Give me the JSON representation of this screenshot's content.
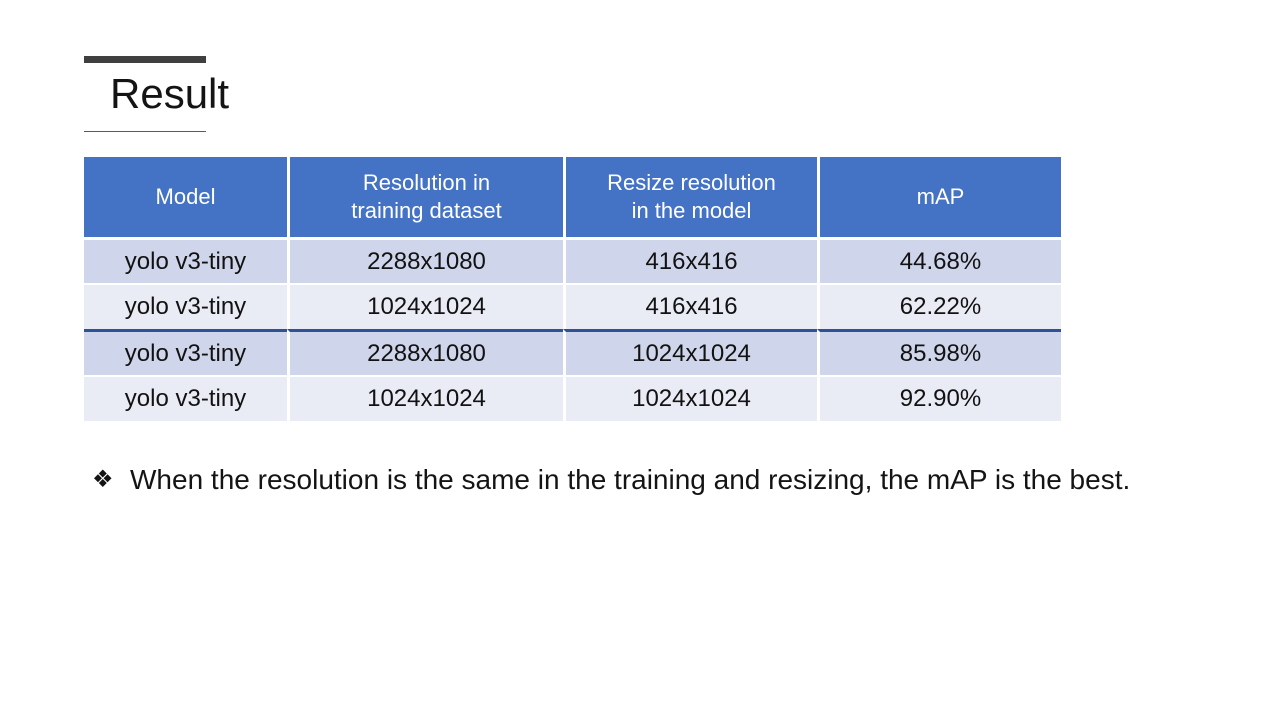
{
  "slide": {
    "title": "Result",
    "bullet": {
      "glyph": "❖",
      "glyph_name": "four-diamond-bullet",
      "text": "When the resolution is the same in the training and resizing, the mAP is the best."
    }
  },
  "table": {
    "headers": {
      "model": "Model",
      "train_res": "Resolution in\ntraining dataset",
      "resize_res": "Resize resolution\nin the model",
      "map": "mAP"
    },
    "rows": [
      {
        "model": "yolo v3-tiny",
        "train_res": "2288x1080",
        "resize_res": "416x416",
        "map": "44.68%"
      },
      {
        "model": "yolo v3-tiny",
        "train_res": "1024x1024",
        "resize_res": "416x416",
        "map": "62.22%"
      },
      {
        "model": "yolo v3-tiny",
        "train_res": "2288x1080",
        "resize_res": "1024x1024",
        "map": "85.98%"
      },
      {
        "model": "yolo v3-tiny",
        "train_res": "1024x1024",
        "resize_res": "1024x1024",
        "map": "92.90%"
      }
    ]
  },
  "colors": {
    "header_bg": "#4472C4",
    "band_dark": "#CFD5EA",
    "band_light": "#E9EBF5",
    "divider_line": "#2E5395",
    "title_bar": "#3F3F3F",
    "text": "#141414"
  }
}
